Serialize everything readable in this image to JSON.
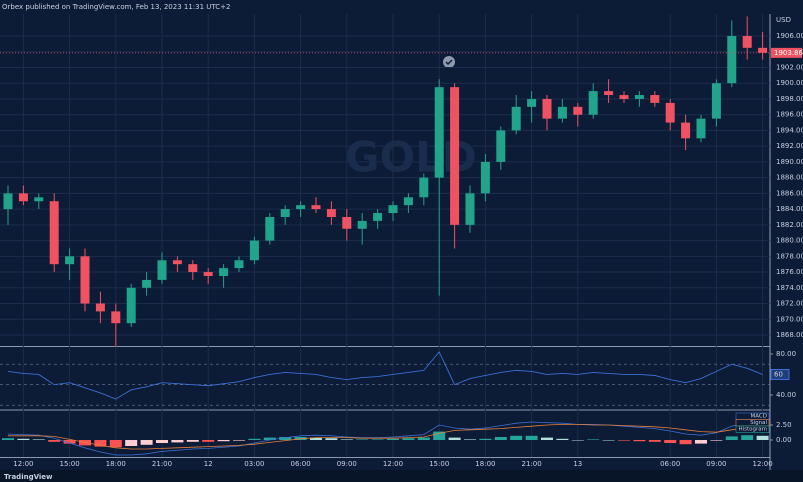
{
  "header": {
    "text": "Orbex published on TradingView.com, Feb 13, 2023 11:31 UTC+2"
  },
  "footer": {
    "brand": "TradingView"
  },
  "chart_data": [
    {
      "type": "candlestick",
      "title": "GOLD",
      "currency": "USD",
      "categories": [
        null,
        "12:00",
        null,
        null,
        "15:00",
        null,
        null,
        "18:00",
        null,
        null,
        "21:00",
        null,
        null,
        "12",
        null,
        null,
        "03:00",
        null,
        null,
        "06:00",
        null,
        null,
        "09:00",
        null,
        null,
        "12:00",
        null,
        null,
        "15:00",
        null,
        null,
        "18:00",
        null,
        null,
        "21:00",
        null,
        null,
        "13",
        null,
        null,
        null,
        null,
        null,
        "06:00",
        null,
        null,
        "09:00",
        null,
        null,
        "12:00"
      ],
      "open": [
        1884,
        1886,
        1885,
        1885,
        1877,
        1878,
        1872,
        1871,
        1869.5,
        1874,
        1875,
        1877.5,
        1877,
        1876,
        1875.5,
        1876.5,
        1877.5,
        1880,
        1883,
        1884,
        1884.5,
        1884,
        1883,
        1881.5,
        1882.5,
        1883.5,
        1884.5,
        1885.5,
        1888,
        1899.5,
        1882,
        1886,
        1890,
        1894,
        1897,
        1898,
        1895.5,
        1897,
        1896,
        1899,
        1898.5,
        1898,
        1898.5,
        1897.5,
        1895,
        1893,
        1895.5,
        1900,
        1906,
        1904.5
      ],
      "high": [
        1887,
        1887,
        1886,
        1886,
        1879,
        1879,
        1873.5,
        1872,
        1874.5,
        1876,
        1878.5,
        1878,
        1877.5,
        1876.5,
        1877,
        1878,
        1880.5,
        1883.5,
        1884.5,
        1885,
        1885.5,
        1885,
        1884,
        1883.5,
        1884,
        1885,
        1886,
        1888.5,
        1900.5,
        1900,
        1887,
        1891,
        1894.5,
        1898.5,
        1899,
        1898.5,
        1898,
        1897.5,
        1900,
        1900.5,
        1899,
        1899,
        1899,
        1898,
        1896,
        1896,
        1900.5,
        1908,
        1908.5,
        1906.5
      ],
      "low": [
        1882,
        1884.5,
        1884,
        1876,
        1875,
        1871,
        1869.5,
        1866.5,
        1869,
        1873,
        1874.5,
        1876,
        1875,
        1874.5,
        1874,
        1876,
        1877,
        1879.5,
        1882,
        1883,
        1883.5,
        1882,
        1880,
        1879.5,
        1881.5,
        1882.5,
        1883.5,
        1884.5,
        1873,
        1879,
        1881,
        1885,
        1889,
        1893.5,
        1895,
        1894,
        1895,
        1894.5,
        1895.5,
        1897.5,
        1897.5,
        1897,
        1897,
        1894,
        1891.5,
        1892.5,
        1894.5,
        1899.5,
        1903,
        1903
      ],
      "close": [
        1886,
        1885,
        1885.5,
        1877,
        1878,
        1872,
        1871,
        1869.5,
        1874,
        1875,
        1877.5,
        1877,
        1876,
        1875.5,
        1876.5,
        1877.5,
        1880,
        1883,
        1884,
        1884.5,
        1884,
        1883,
        1881.5,
        1882.5,
        1883.5,
        1884.5,
        1885.5,
        1888,
        1899.5,
        1882,
        1886,
        1890,
        1894,
        1897,
        1898,
        1895.5,
        1897,
        1896,
        1899,
        1898.5,
        1898,
        1898.5,
        1897.5,
        1895,
        1893,
        1895.5,
        1900,
        1906,
        1904.5,
        1903.86
      ],
      "up_color": "#22a38c",
      "down_color": "#ef5361",
      "last_price": 1903.86,
      "ylim": [
        1866.6,
        1908.8
      ],
      "yticks": [
        {
          "value": 1868,
          "label": "1868.00"
        },
        {
          "value": 1870,
          "label": "1870.00"
        },
        {
          "value": 1872,
          "label": "1872.00"
        },
        {
          "value": 1874,
          "label": "1874.00"
        },
        {
          "value": 1876,
          "label": "1876.00"
        },
        {
          "value": 1878,
          "label": "1878.00"
        },
        {
          "value": 1880,
          "label": "1880.00"
        },
        {
          "value": 1882,
          "label": "1882.00"
        },
        {
          "value": 1884,
          "label": "1884.00"
        },
        {
          "value": 1886,
          "label": "1886.00"
        },
        {
          "value": 1888,
          "label": "1888.00"
        },
        {
          "value": 1890,
          "label": "1890.00"
        },
        {
          "value": 1892,
          "label": "1892.00"
        },
        {
          "value": 1894,
          "label": "1894.00"
        },
        {
          "value": 1896,
          "label": "1896.00"
        },
        {
          "value": 1898,
          "label": "1898.00"
        },
        {
          "value": 1900,
          "label": "1900.00"
        },
        {
          "value": 1902,
          "label": "1902.00"
        },
        {
          "value": 1904,
          "label": "1904.00"
        },
        {
          "value": 1906,
          "label": "1906.00"
        }
      ],
      "grid": true
    },
    {
      "type": "line",
      "values": [
        63,
        61,
        60,
        50,
        52,
        47,
        42,
        36,
        45,
        48,
        52,
        51,
        50,
        49,
        51,
        53,
        57,
        60,
        62,
        61,
        60,
        57,
        55,
        57,
        58,
        60,
        62,
        64,
        82,
        50,
        56,
        59,
        62,
        64,
        63,
        60,
        61,
        60,
        62,
        61,
        60,
        60,
        59,
        55,
        52,
        56,
        63,
        70,
        66,
        60
      ],
      "color": "#3b6fd4",
      "last_value": 60,
      "bands": [
        70,
        50,
        30
      ],
      "ylim": [
        26.3,
        86.8
      ],
      "yticks": [
        {
          "value": 80,
          "label": "80.00"
        },
        {
          "value": 40,
          "label": "40.00"
        }
      ]
    },
    {
      "type": "macd",
      "series": [
        {
          "name": "MACD",
          "color": "#3b6fd4",
          "values": [
            1.0,
            0.9,
            0.8,
            0.3,
            -0.5,
            -1.3,
            -2.0,
            -2.5,
            -2.5,
            -2.3,
            -1.9,
            -1.7,
            -1.5,
            -1.4,
            -1.2,
            -1.0,
            -0.5,
            0.0,
            0.4,
            0.7,
            0.8,
            0.7,
            0.5,
            0.4,
            0.4,
            0.5,
            0.7,
            0.9,
            2.5,
            2.0,
            1.8,
            2.0,
            2.4,
            2.8,
            3.0,
            2.9,
            2.8,
            2.6,
            2.6,
            2.5,
            2.3,
            2.1,
            1.9,
            1.5,
            1.0,
            0.8,
            1.2,
            2.3,
            2.9,
            3.1
          ]
        },
        {
          "name": "Signal",
          "color": "#e6803a",
          "values": [
            0.7,
            0.7,
            0.7,
            0.6,
            0.1,
            -0.4,
            -0.9,
            -1.3,
            -1.5,
            -1.5,
            -1.4,
            -1.3,
            -1.2,
            -1.1,
            -1.0,
            -0.9,
            -0.7,
            -0.4,
            -0.1,
            0.2,
            0.4,
            0.4,
            0.4,
            0.3,
            0.3,
            0.3,
            0.4,
            0.5,
            1.1,
            1.6,
            1.7,
            1.8,
            1.9,
            2.1,
            2.3,
            2.5,
            2.6,
            2.6,
            2.5,
            2.5,
            2.4,
            2.3,
            2.2,
            2.0,
            1.7,
            1.4,
            1.3,
            1.7,
            2.1,
            2.4
          ]
        },
        {
          "name": "Histogram",
          "color": "#26a69a",
          "values": [
            0.3,
            0.2,
            0.1,
            -0.3,
            -0.6,
            -0.9,
            -1.1,
            -1.2,
            -1.0,
            -0.8,
            -0.5,
            -0.4,
            -0.3,
            -0.3,
            -0.2,
            -0.1,
            0.2,
            0.4,
            0.5,
            0.5,
            0.4,
            0.3,
            0.1,
            0.1,
            0.1,
            0.2,
            0.3,
            0.4,
            1.4,
            0.4,
            0.1,
            0.2,
            0.5,
            0.7,
            0.7,
            0.4,
            0.2,
            0.0,
            0.1,
            0.0,
            -0.1,
            -0.2,
            -0.3,
            -0.5,
            -0.7,
            -0.6,
            -0.1,
            0.6,
            0.8,
            0.7
          ]
        }
      ],
      "histogram_colors": {
        "rising_up": "#26a69a",
        "falling_up": "#b2dfdb",
        "falling_down": "#ff5252",
        "rising_down": "#ffcdd2"
      },
      "ylim": [
        -2.83,
        4.83
      ],
      "yticks": [
        {
          "value": 2.5,
          "label": "2.50"
        },
        {
          "value": 0,
          "label": "0.00"
        }
      ]
    }
  ]
}
